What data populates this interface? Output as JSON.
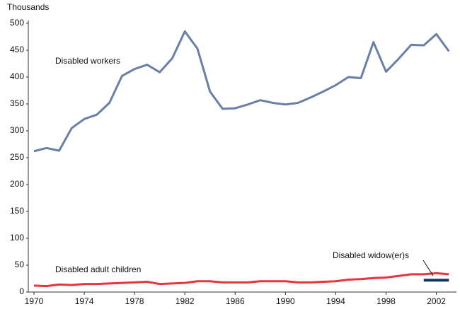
{
  "chart_data": {
    "type": "line",
    "y_label": "Thousands",
    "x": [
      1970,
      1971,
      1972,
      1973,
      1974,
      1975,
      1976,
      1977,
      1978,
      1979,
      1980,
      1981,
      1982,
      1983,
      1984,
      1985,
      1986,
      1987,
      1988,
      1989,
      1990,
      1991,
      1992,
      1993,
      1994,
      1995,
      1996,
      1997,
      1998,
      1999,
      2000,
      2001,
      2002,
      2003
    ],
    "series": [
      {
        "name": "Disabled workers",
        "color": "#6a7fa8",
        "values": [
          262,
          268,
          263,
          305,
          322,
          330,
          352,
          402,
          415,
          423,
          409,
          435,
          485,
          453,
          373,
          341,
          342,
          349,
          357,
          352,
          349,
          352,
          362,
          373,
          385,
          400,
          398,
          465,
          410,
          434,
          460,
          459,
          480,
          448
        ]
      },
      {
        "name": "Disabled adult children",
        "color": "#e8343f",
        "values": [
          12,
          11,
          14,
          13,
          15,
          15,
          16,
          17,
          18,
          19,
          15,
          16,
          17,
          20,
          20,
          18,
          18,
          18,
          20,
          20,
          20,
          18,
          18,
          19,
          20,
          23,
          24,
          26,
          27,
          30,
          33,
          33,
          35,
          33
        ]
      },
      {
        "name": "Disabled widow(er)s",
        "color": "#14365f",
        "values": [
          null,
          null,
          null,
          null,
          null,
          null,
          null,
          null,
          null,
          null,
          null,
          null,
          null,
          null,
          null,
          null,
          null,
          null,
          null,
          null,
          null,
          null,
          null,
          null,
          null,
          null,
          null,
          null,
          null,
          null,
          null,
          22,
          22,
          22
        ]
      }
    ],
    "xlim": [
      1969.55,
      2003.6
    ],
    "xticks": [
      1970,
      1974,
      1978,
      1982,
      1986,
      1990,
      1994,
      1998,
      2002
    ],
    "ylim": [
      0,
      500
    ],
    "yticks": [
      0,
      50,
      100,
      150,
      200,
      250,
      300,
      350,
      400,
      450,
      500
    ],
    "grid": false
  }
}
